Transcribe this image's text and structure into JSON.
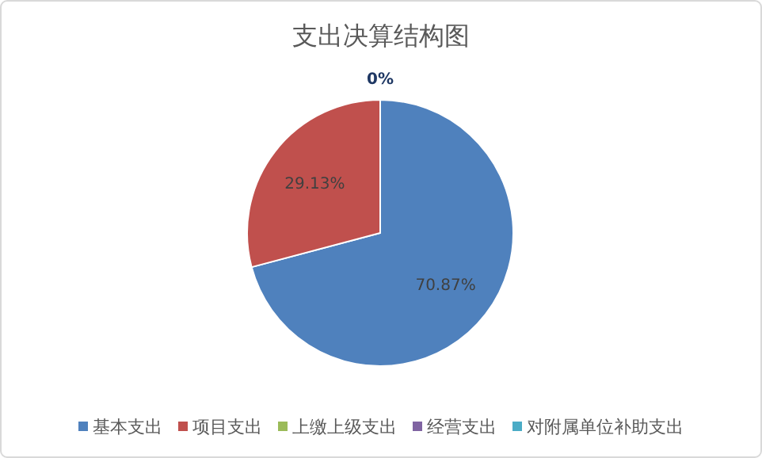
{
  "chart_data": {
    "type": "pie",
    "title": "支出决算结构图",
    "categories": [
      "基本支出",
      "项目支出",
      "上缴上级支出",
      "经营支出",
      "对附属单位补助支出"
    ],
    "values": [
      70.87,
      29.13,
      0,
      0,
      0
    ],
    "colors": [
      "#4f81bd",
      "#c0504d",
      "#9bbb59",
      "#8064a2",
      "#4bacc6"
    ],
    "value_labels": [
      "70.87%",
      "29.13%",
      "0%",
      null,
      null
    ],
    "legend": "bottom"
  }
}
